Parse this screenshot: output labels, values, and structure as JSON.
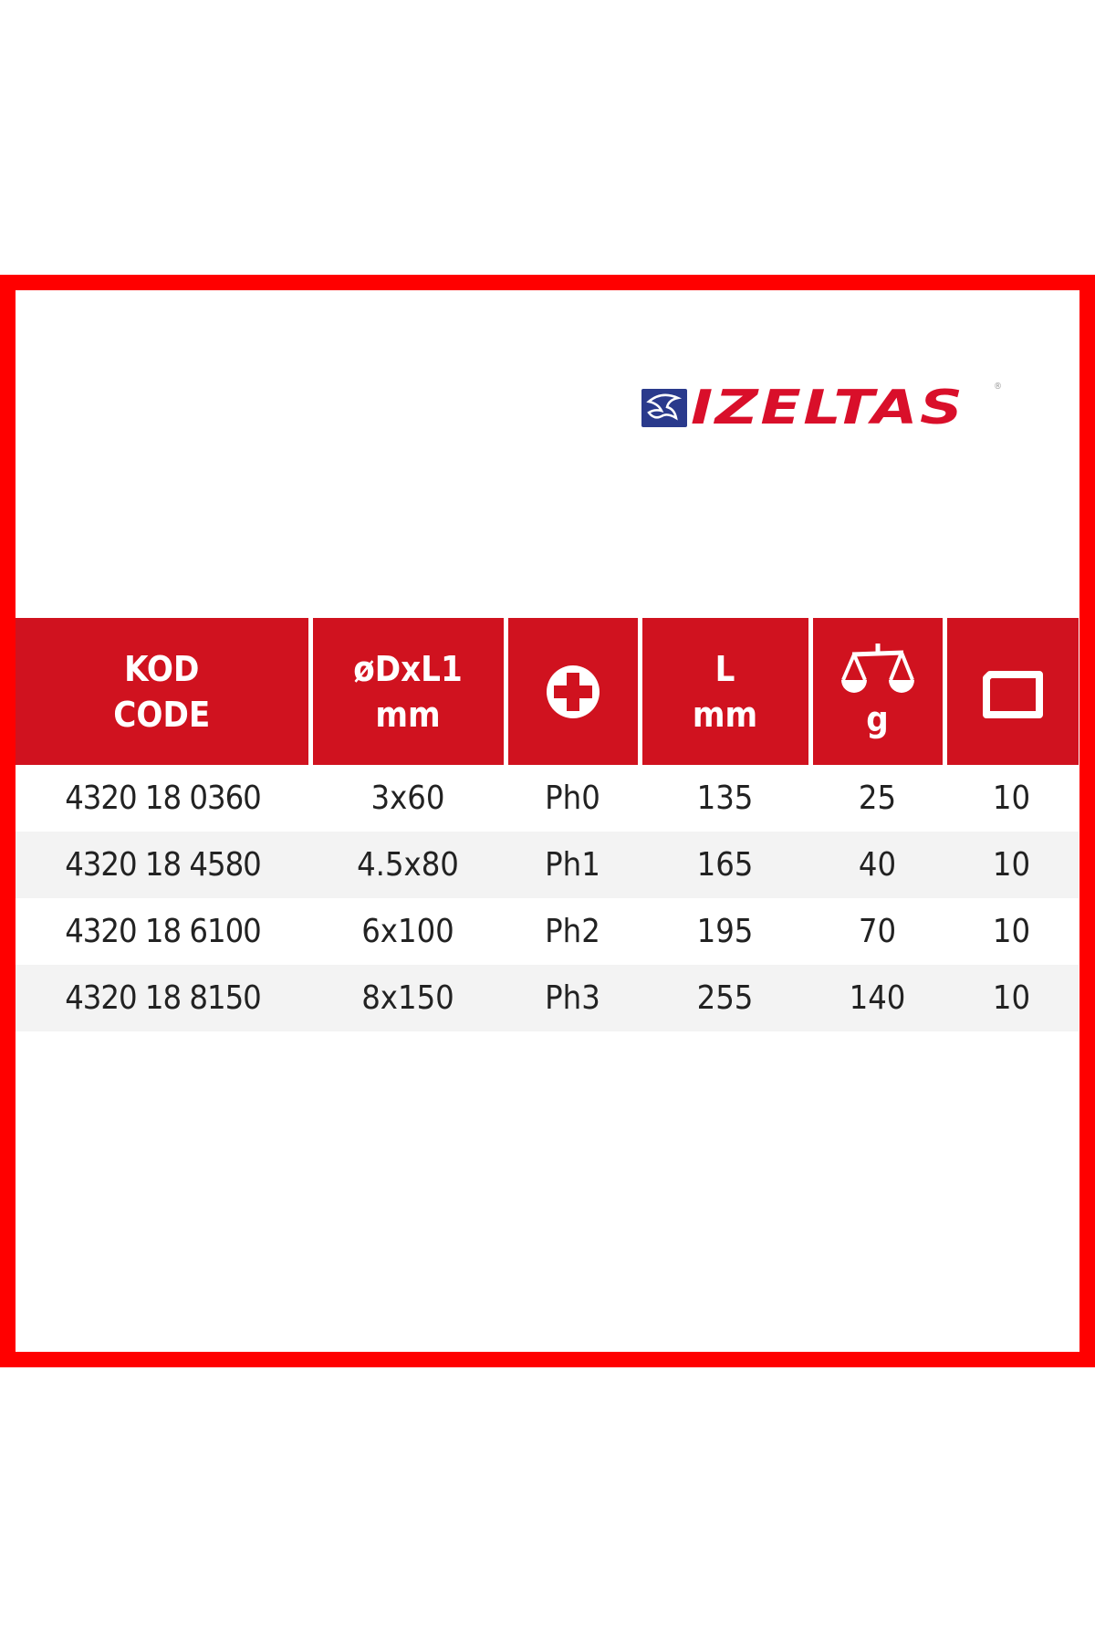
{
  "brand": {
    "logo_text": "IZELTAS",
    "registered_mark": "®",
    "brand_red": "#d90f2a",
    "brand_blue": "#2a3a8c"
  },
  "frame_color": "#ff0000",
  "table": {
    "header_color": "#d0121f",
    "headers": [
      {
        "line1": "KOD",
        "line2": "CODE"
      },
      {
        "line1": "øDxL1",
        "line2": "mm"
      },
      {
        "icon": "phillips-cross-icon"
      },
      {
        "line1": "L",
        "line2": "mm"
      },
      {
        "icon": "scale-icon",
        "line2": "g"
      },
      {
        "icon": "package-box-icon"
      }
    ],
    "rows": [
      [
        "4320 18 0360",
        "3x60",
        "Ph0",
        "135",
        "25",
        "10"
      ],
      [
        "4320 18 4580",
        "4.5x80",
        "Ph1",
        "165",
        "40",
        "10"
      ],
      [
        "4320 18 6100",
        "6x100",
        "Ph2",
        "195",
        "70",
        "10"
      ],
      [
        "4320 18 8150",
        "8x150",
        "Ph3",
        "255",
        "140",
        "10"
      ]
    ]
  }
}
